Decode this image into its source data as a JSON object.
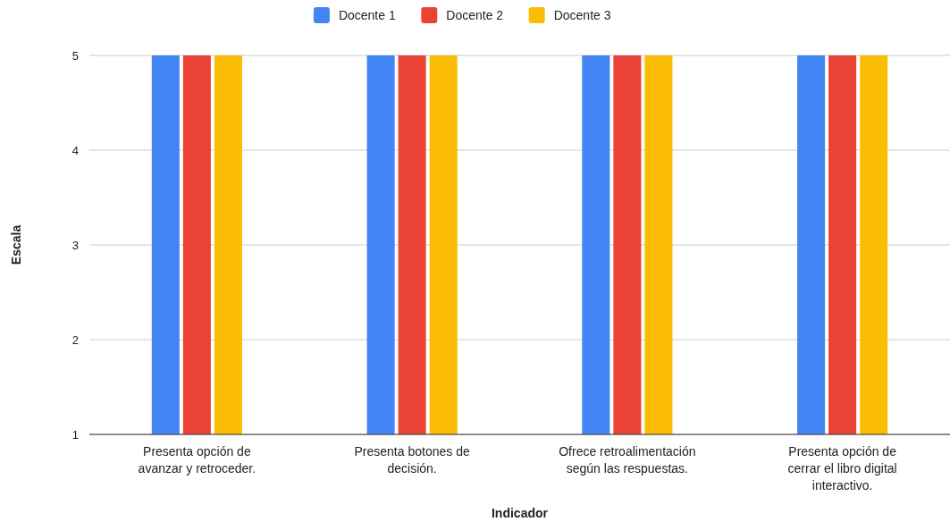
{
  "chart_data": {
    "type": "bar",
    "xlabel": "Indicador",
    "ylabel": "Escala",
    "categories": [
      "Presenta opción de avanzar y retroceder.",
      "Presenta botones de decisión.",
      "Ofrece retroalimentación según las respuestas.",
      "Presenta opción de cerrar el libro digital interactivo."
    ],
    "series": [
      {
        "name": "Docente 1",
        "color": "#4285f4",
        "values": [
          5,
          5,
          5,
          5
        ]
      },
      {
        "name": "Docente 2",
        "color": "#ea4335",
        "values": [
          5,
          5,
          5,
          5
        ]
      },
      {
        "name": "Docente 3",
        "color": "#fbbc04",
        "values": [
          5,
          5,
          5,
          5
        ]
      }
    ],
    "ylim": [
      1,
      5
    ],
    "yticks": [
      1,
      2,
      3,
      4,
      5
    ],
    "grid": "y",
    "legend": "top"
  }
}
